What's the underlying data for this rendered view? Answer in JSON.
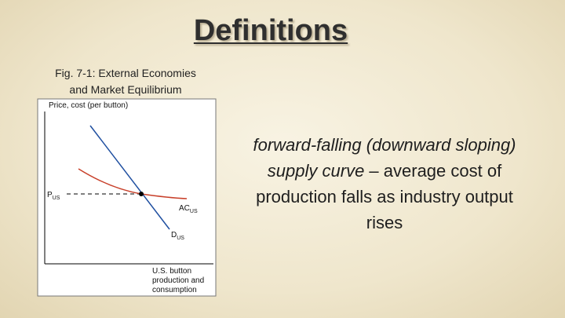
{
  "slide": {
    "title": "Definitions",
    "caption": [
      "Fig. 7-1: External Economies",
      "and Market Equilibrium"
    ],
    "figure": {
      "y_axis_label": "Price, cost (per button)",
      "price_label": {
        "main": "P",
        "sub": "US"
      },
      "cost_curve_label": {
        "main": "AC",
        "sub": "US"
      },
      "demand_curve_label": {
        "main": "D",
        "sub": "US"
      },
      "x_axis_label": [
        "U.S. button",
        "production and",
        "consumption"
      ]
    },
    "definition": {
      "term": "forward-falling (downward sloping) supply curve",
      "text": " – average cost of production falls as industry output rises"
    }
  }
}
